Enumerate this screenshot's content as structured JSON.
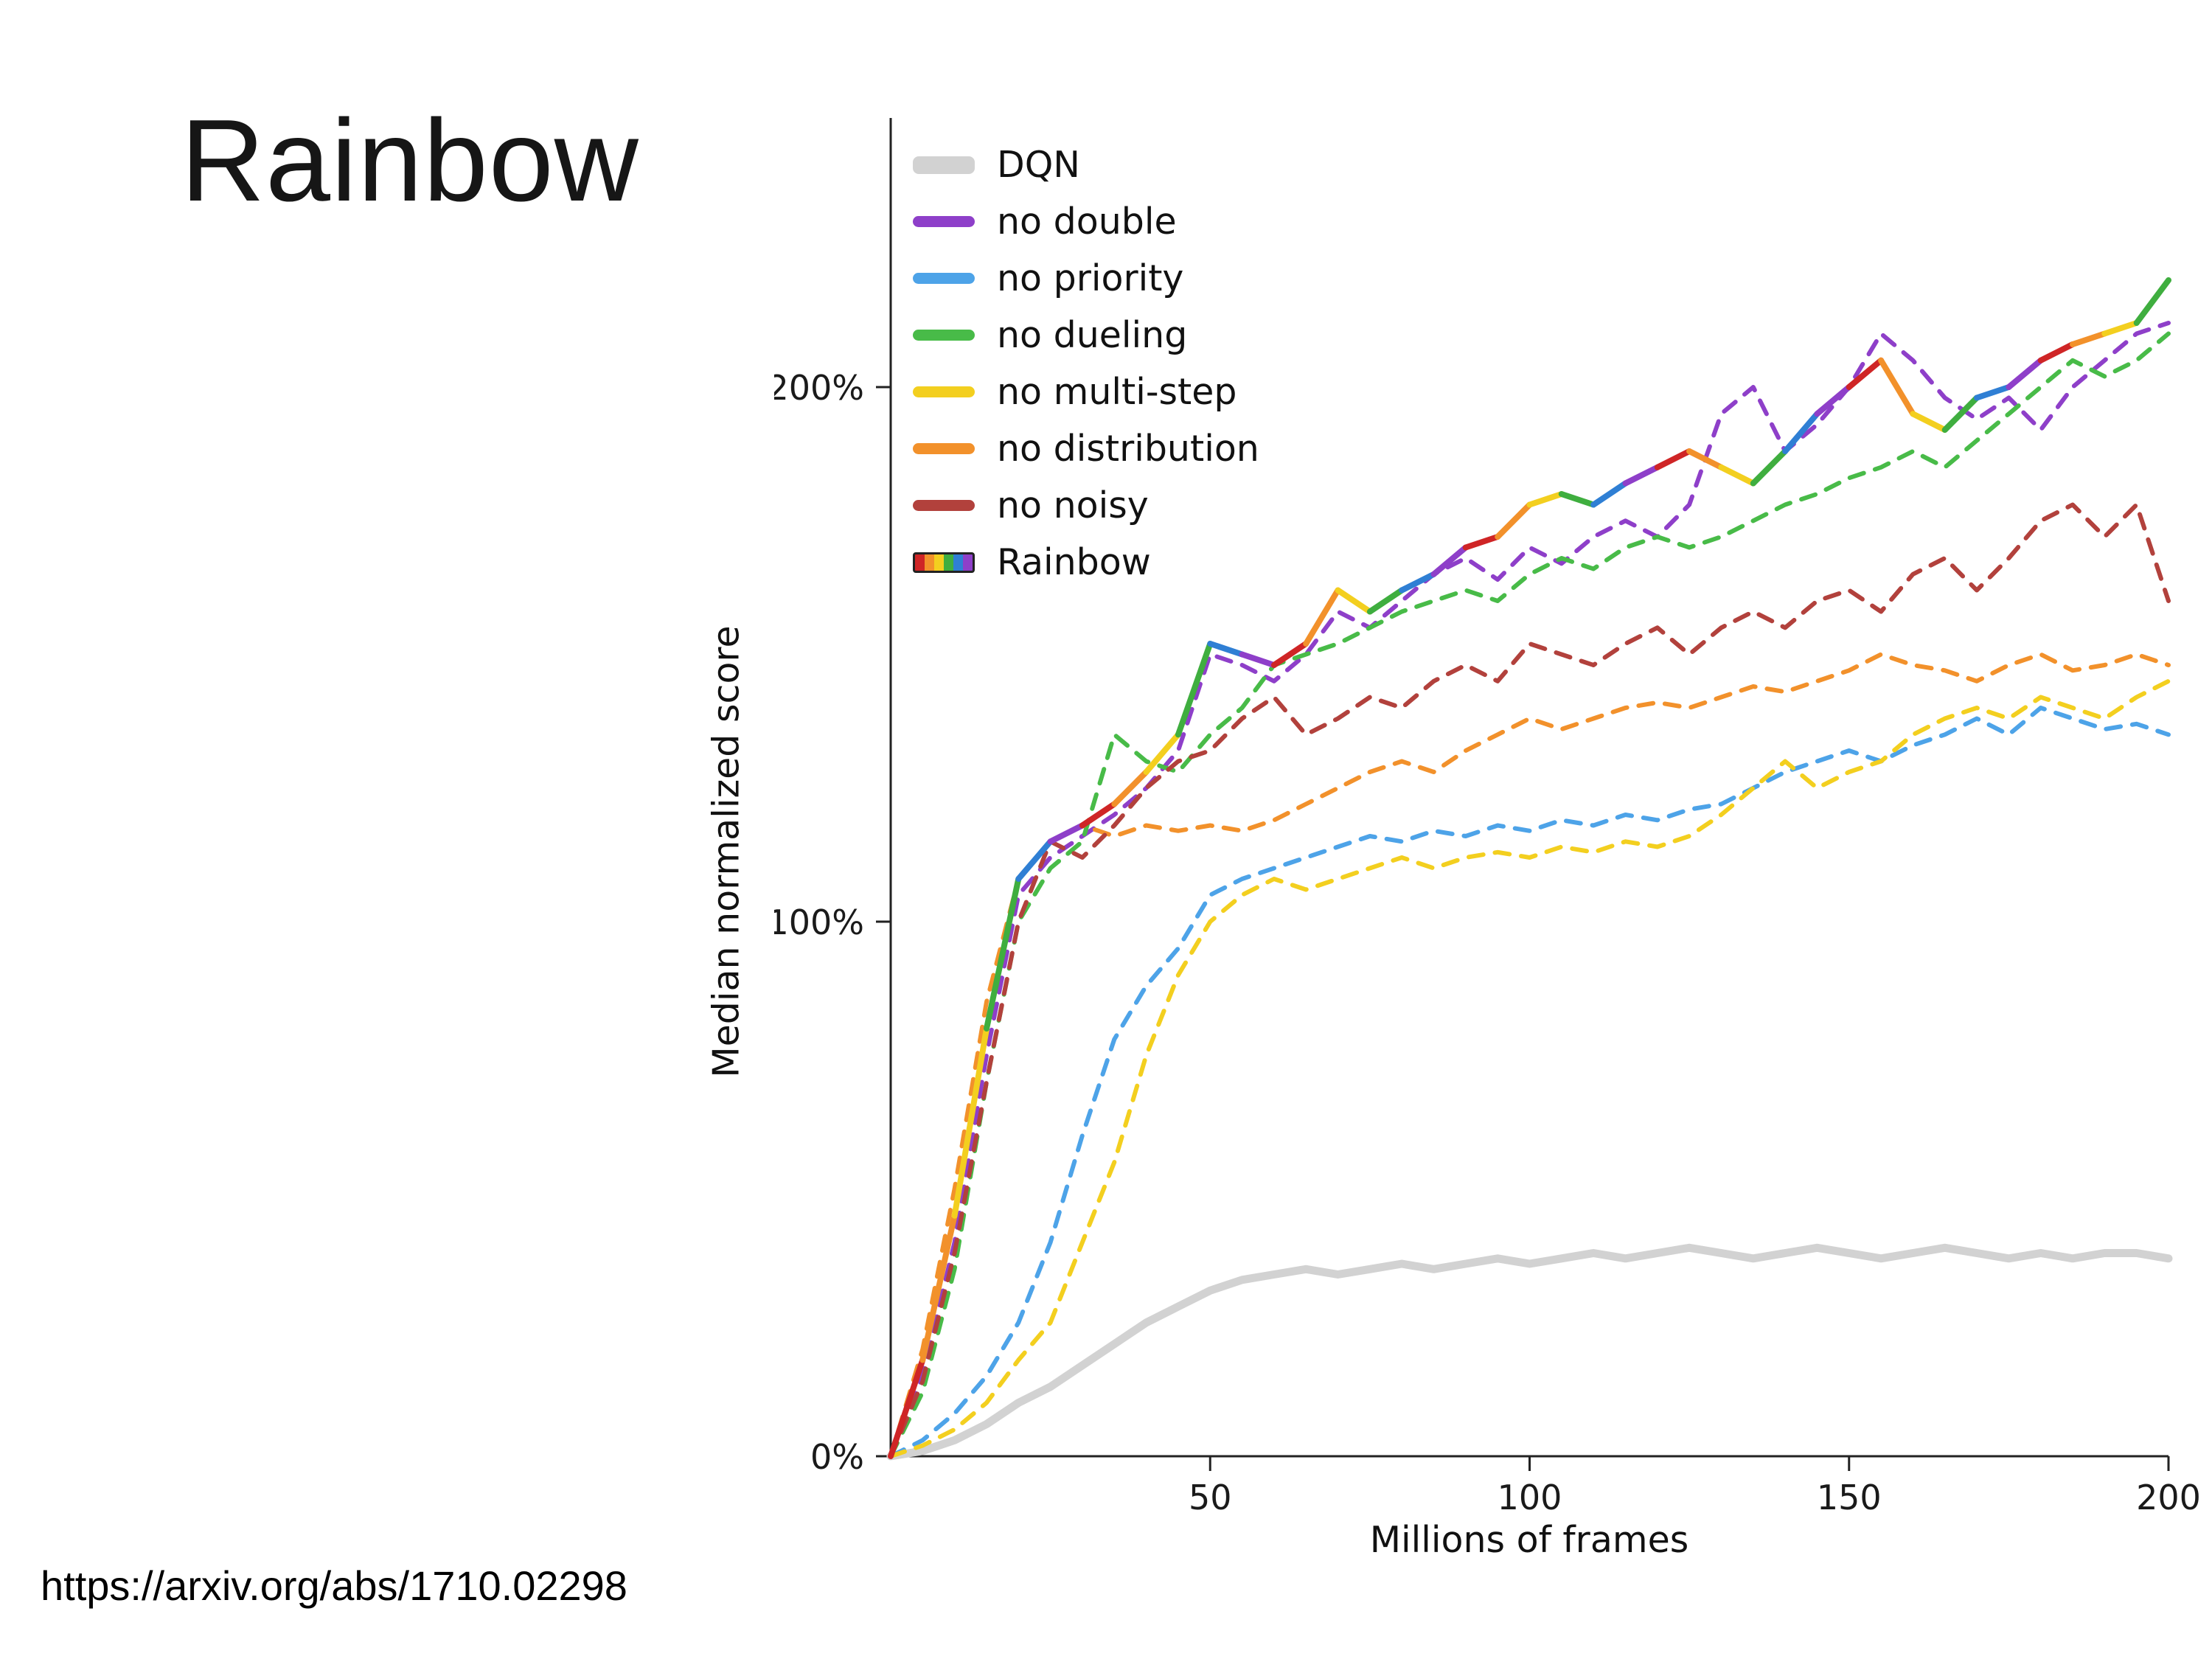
{
  "slide": {
    "title": "Rainbow",
    "source_url": "https://arxiv.org/abs/1710.02298"
  },
  "chart_data": {
    "type": "line",
    "title": "",
    "xlabel": "Millions of frames",
    "ylabel": "Median normalized score",
    "xlim": [
      0,
      200
    ],
    "ylim_percent": [
      0,
      250
    ],
    "grid": false,
    "legend_position": "upper-left-inside",
    "x_ticks": [
      {
        "value": 50,
        "label": "50"
      },
      {
        "value": 100,
        "label": "100"
      },
      {
        "value": 150,
        "label": "150"
      },
      {
        "value": 200,
        "label": "200"
      }
    ],
    "y_ticks": [
      {
        "value": 0,
        "label": "0%"
      },
      {
        "value": 100,
        "label": "100%"
      },
      {
        "value": 200,
        "label": "200%"
      }
    ],
    "rainbow_palette": [
      "#cf2526",
      "#f2912b",
      "#f3cf1f",
      "#3fae3f",
      "#2f7fd4",
      "#8e3fc9"
    ],
    "x": [
      0,
      5,
      10,
      15,
      20,
      25,
      30,
      35,
      40,
      45,
      50,
      55,
      60,
      65,
      70,
      75,
      80,
      85,
      90,
      95,
      100,
      105,
      110,
      115,
      120,
      125,
      130,
      135,
      140,
      145,
      150,
      155,
      160,
      165,
      170,
      175,
      180,
      185,
      190,
      195,
      200
    ],
    "series": [
      {
        "name": "DQN",
        "color": "#d2d2d2",
        "style": "solid",
        "width": 11,
        "values": [
          0,
          1,
          3,
          6,
          10,
          13,
          17,
          21,
          25,
          28,
          31,
          33,
          34,
          35,
          34,
          35,
          36,
          35,
          36,
          37,
          36,
          37,
          38,
          37,
          38,
          39,
          38,
          37,
          38,
          39,
          38,
          37,
          38,
          39,
          38,
          37,
          38,
          37,
          38,
          38,
          37
        ]
      },
      {
        "name": "no double",
        "color": "#8e3fc9",
        "style": "dashed",
        "width": 6,
        "values": [
          0,
          15,
          40,
          75,
          105,
          112,
          116,
          120,
          125,
          132,
          150,
          148,
          145,
          150,
          158,
          155,
          160,
          165,
          168,
          164,
          170,
          167,
          172,
          175,
          172,
          178,
          195,
          200,
          188,
          193,
          200,
          210,
          205,
          198,
          194,
          198,
          192,
          200,
          205,
          210,
          212
        ]
      },
      {
        "name": "no priority",
        "color": "#4da3e8",
        "style": "dashed",
        "width": 6,
        "values": [
          0,
          3,
          8,
          15,
          25,
          40,
          60,
          78,
          88,
          95,
          105,
          108,
          110,
          112,
          114,
          116,
          115,
          117,
          116,
          118,
          117,
          119,
          118,
          120,
          119,
          121,
          122,
          125,
          128,
          130,
          132,
          130,
          133,
          135,
          138,
          135,
          140,
          138,
          136,
          137,
          135
        ]
      },
      {
        "name": "no dueling",
        "color": "#48bb48",
        "style": "dashed",
        "width": 6,
        "values": [
          0,
          12,
          35,
          70,
          100,
          110,
          115,
          135,
          130,
          128,
          135,
          140,
          148,
          150,
          152,
          155,
          158,
          160,
          162,
          160,
          165,
          168,
          166,
          170,
          172,
          170,
          172,
          175,
          178,
          180,
          183,
          185,
          188,
          185,
          190,
          195,
          200,
          205,
          202,
          205,
          210
        ]
      },
      {
        "name": "no multi-step",
        "color": "#f3cf1f",
        "style": "dashed",
        "width": 6,
        "values": [
          0,
          2,
          5,
          10,
          18,
          25,
          40,
          55,
          75,
          90,
          100,
          105,
          108,
          106,
          108,
          110,
          112,
          110,
          112,
          113,
          112,
          114,
          113,
          115,
          114,
          116,
          120,
          125,
          130,
          125,
          128,
          130,
          135,
          138,
          140,
          138,
          142,
          140,
          138,
          142,
          145
        ]
      },
      {
        "name": "no distribution",
        "color": "#f2912b",
        "style": "dashed",
        "width": 6,
        "values": [
          0,
          20,
          50,
          85,
          108,
          115,
          118,
          116,
          118,
          117,
          118,
          117,
          119,
          122,
          125,
          128,
          130,
          128,
          132,
          135,
          138,
          136,
          138,
          140,
          141,
          140,
          142,
          144,
          143,
          145,
          147,
          150,
          148,
          147,
          145,
          148,
          150,
          147,
          148,
          150,
          148
        ]
      },
      {
        "name": "no noisy",
        "color": "#b2413c",
        "style": "dashed",
        "width": 6,
        "values": [
          0,
          14,
          38,
          70,
          100,
          115,
          112,
          118,
          125,
          130,
          132,
          138,
          142,
          135,
          138,
          142,
          140,
          145,
          148,
          145,
          152,
          150,
          148,
          152,
          155,
          150,
          155,
          158,
          155,
          160,
          162,
          158,
          165,
          168,
          162,
          168,
          175,
          178,
          172,
          178,
          160
        ]
      },
      {
        "name": "Rainbow",
        "color": "rainbow",
        "style": "solid",
        "width": 8,
        "values": [
          0,
          18,
          45,
          80,
          108,
          115,
          118,
          122,
          128,
          135,
          152,
          150,
          148,
          152,
          162,
          158,
          162,
          165,
          170,
          172,
          178,
          180,
          178,
          182,
          185,
          188,
          185,
          182,
          188,
          195,
          200,
          205,
          195,
          192,
          198,
          200,
          205,
          208,
          210,
          212,
          220
        ]
      }
    ]
  }
}
